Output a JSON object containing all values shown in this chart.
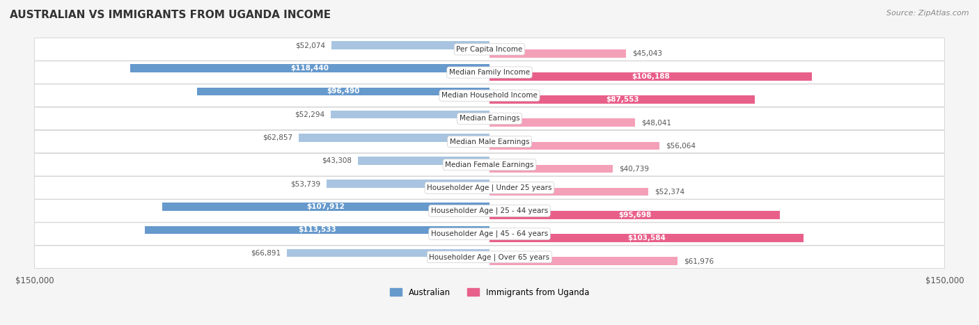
{
  "title": "AUSTRALIAN VS IMMIGRANTS FROM UGANDA INCOME",
  "source": "Source: ZipAtlas.com",
  "categories": [
    "Per Capita Income",
    "Median Family Income",
    "Median Household Income",
    "Median Earnings",
    "Median Male Earnings",
    "Median Female Earnings",
    "Householder Age | Under 25 years",
    "Householder Age | 25 - 44 years",
    "Householder Age | 45 - 64 years",
    "Householder Age | Over 65 years"
  ],
  "australian_values": [
    52074,
    118440,
    96490,
    52294,
    62857,
    43308,
    53739,
    107912,
    113533,
    66891
  ],
  "immigrant_values": [
    45043,
    106188,
    87553,
    48041,
    56064,
    40739,
    52374,
    95698,
    103584,
    61976
  ],
  "australian_labels": [
    "$52,074",
    "$118,440",
    "$96,490",
    "$52,294",
    "$62,857",
    "$43,308",
    "$53,739",
    "$107,912",
    "$113,533",
    "$66,891"
  ],
  "immigrant_labels": [
    "$45,043",
    "$106,188",
    "$87,553",
    "$48,041",
    "$56,064",
    "$40,739",
    "$52,374",
    "$95,698",
    "$103,584",
    "$61,976"
  ],
  "australian_color_light": "#a8c4e0",
  "australian_color_dark": "#6699cc",
  "immigrant_color_light": "#f4a0b8",
  "immigrant_color_dark": "#e8608a",
  "label_color_dark": "#ffffff",
  "label_color_light": "#555555",
  "background_color": "#f5f5f5",
  "row_bg_color": "#ffffff",
  "max_value": 150000,
  "legend_australian": "Australian",
  "legend_immigrant": "Immigrants from Uganda",
  "xaxis_label_left": "$150,000",
  "xaxis_label_right": "$150,000",
  "dark_threshold": 80000
}
